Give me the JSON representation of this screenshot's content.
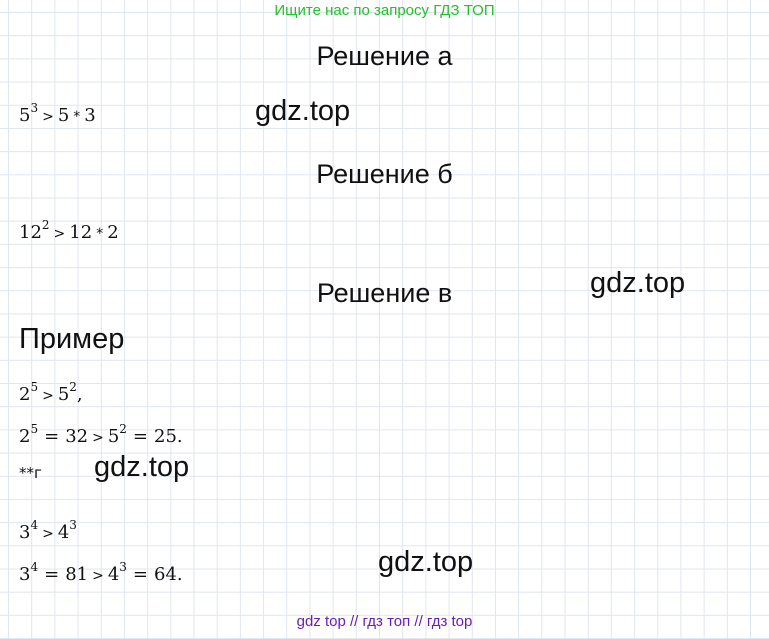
{
  "banner": "Ищите нас по запросу ГДЗ ТОП",
  "headings": {
    "a": "Решение а",
    "b": "Решение б",
    "v": "Решение в"
  },
  "watermark": "gdz.top",
  "primer_label": "Пример",
  "note_g": "**г",
  "math": {
    "gt": ">",
    "times": "*",
    "eq": "=",
    "a": {
      "base": "5",
      "exp": "3",
      "rhs_1": "5",
      "rhs_2": "3"
    },
    "b": {
      "base": "12",
      "exp": "2",
      "rhs_1": "12",
      "rhs_2": "2"
    },
    "ex1": {
      "b1": "2",
      "e1": "5",
      "b2": "5",
      "e2": "2",
      "tail": ","
    },
    "ex2": {
      "b1": "2",
      "e1": "5",
      "v1": "32",
      "b2": "5",
      "e2": "2",
      "v2": "25."
    },
    "g1": {
      "b1": "3",
      "e1": "4",
      "b2": "4",
      "e2": "3"
    },
    "g2": {
      "b1": "3",
      "e1": "4",
      "v1": "81",
      "b2": "4",
      "e2": "3",
      "v2": "64."
    }
  },
  "footer": "gdz top  //  гдз топ  //  гдз top"
}
